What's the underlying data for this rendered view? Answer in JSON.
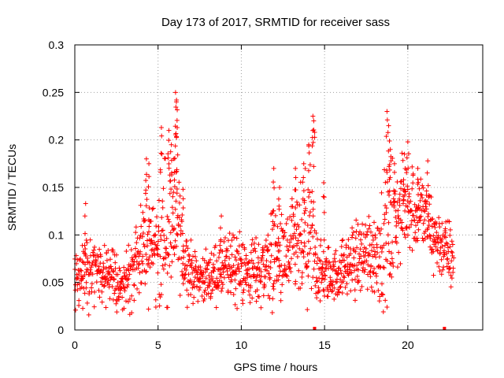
{
  "chart_data": {
    "type": "scatter",
    "title": "Day 173 of 2017, SRMTID for receiver sass",
    "xlabel": "GPS time / hours",
    "ylabel": "SRMTID / TECUs",
    "xlim": [
      0,
      24.5
    ],
    "ylim": [
      0,
      0.3
    ],
    "x_ticks": [
      "0",
      "5",
      "10",
      "15",
      "20"
    ],
    "x_tick_values": [
      0,
      5,
      10,
      15,
      20
    ],
    "y_ticks": [
      "0",
      "0.05",
      "0.1",
      "0.15",
      "0.2",
      "0.25",
      "0.3"
    ],
    "y_tick_values": [
      0,
      0.05,
      0.1,
      0.15,
      0.2,
      0.25,
      0.3
    ],
    "grid": true,
    "marker": "plus",
    "color": "#ff0000",
    "series": [
      {
        "name": "SRMTID",
        "note": "dense time series ~every 40 s; envelope sampled below",
        "x": [
          0.0,
          0.25,
          0.5,
          0.75,
          1.0,
          1.25,
          1.5,
          1.75,
          2.0,
          2.25,
          2.5,
          2.75,
          3.0,
          3.25,
          3.5,
          3.75,
          4.0,
          4.25,
          4.5,
          4.75,
          5.0,
          5.25,
          5.5,
          5.75,
          6.0,
          6.25,
          6.5,
          6.75,
          7.0,
          7.25,
          7.5,
          7.75,
          8.0,
          8.25,
          8.5,
          8.75,
          9.0,
          9.25,
          9.5,
          9.75,
          10.0,
          10.25,
          10.5,
          10.75,
          11.0,
          11.25,
          11.5,
          11.75,
          12.0,
          12.25,
          12.5,
          12.75,
          13.0,
          13.25,
          13.5,
          13.75,
          14.0,
          14.25,
          14.5,
          14.75,
          15.0,
          15.25,
          15.5,
          15.75,
          16.0,
          16.25,
          16.5,
          16.75,
          17.0,
          17.25,
          17.5,
          17.75,
          18.0,
          18.25,
          18.5,
          18.75,
          19.0,
          19.25,
          19.5,
          19.75,
          20.0,
          20.25,
          20.5,
          20.75,
          21.0,
          21.25,
          21.5,
          21.75,
          22.0,
          22.25,
          22.5,
          22.75
        ],
        "mean": [
          0.055,
          0.05,
          0.06,
          0.065,
          0.07,
          0.065,
          0.06,
          0.055,
          0.06,
          0.055,
          0.05,
          0.045,
          0.05,
          0.06,
          0.065,
          0.07,
          0.08,
          0.09,
          0.1,
          0.09,
          0.085,
          0.09,
          0.1,
          0.11,
          0.11,
          0.1,
          0.08,
          0.07,
          0.06,
          0.058,
          0.055,
          0.055,
          0.055,
          0.058,
          0.06,
          0.06,
          0.065,
          0.065,
          0.07,
          0.065,
          0.065,
          0.06,
          0.06,
          0.065,
          0.06,
          0.065,
          0.07,
          0.075,
          0.08,
          0.075,
          0.07,
          0.075,
          0.08,
          0.085,
          0.085,
          0.09,
          0.095,
          0.09,
          0.07,
          0.06,
          0.055,
          0.06,
          0.055,
          0.06,
          0.065,
          0.065,
          0.07,
          0.075,
          0.075,
          0.08,
          0.08,
          0.085,
          0.08,
          0.085,
          0.09,
          0.1,
          0.11,
          0.115,
          0.12,
          0.13,
          0.135,
          0.13,
          0.125,
          0.13,
          0.12,
          0.11,
          0.1,
          0.095,
          0.09,
          0.085,
          0.08,
          0.07
        ],
        "spread": [
          0.025,
          0.025,
          0.03,
          0.035,
          0.03,
          0.03,
          0.03,
          0.025,
          0.025,
          0.03,
          0.025,
          0.02,
          0.025,
          0.03,
          0.03,
          0.035,
          0.04,
          0.045,
          0.05,
          0.045,
          0.05,
          0.06,
          0.07,
          0.08,
          0.07,
          0.05,
          0.035,
          0.03,
          0.025,
          0.02,
          0.02,
          0.02,
          0.02,
          0.025,
          0.025,
          0.025,
          0.03,
          0.03,
          0.035,
          0.035,
          0.03,
          0.03,
          0.03,
          0.03,
          0.03,
          0.035,
          0.035,
          0.04,
          0.045,
          0.04,
          0.04,
          0.045,
          0.045,
          0.05,
          0.05,
          0.06,
          0.07,
          0.065,
          0.04,
          0.03,
          0.025,
          0.025,
          0.02,
          0.025,
          0.025,
          0.025,
          0.03,
          0.035,
          0.035,
          0.035,
          0.035,
          0.04,
          0.04,
          0.045,
          0.05,
          0.06,
          0.065,
          0.05,
          0.045,
          0.04,
          0.04,
          0.04,
          0.04,
          0.035,
          0.035,
          0.035,
          0.035,
          0.03,
          0.03,
          0.03,
          0.03,
          0.03
        ],
        "peaks": [
          {
            "x": 4.3,
            "y": 0.18
          },
          {
            "x": 4.45,
            "y": 0.175
          },
          {
            "x": 5.2,
            "y": 0.213
          },
          {
            "x": 5.65,
            "y": 0.21
          },
          {
            "x": 5.8,
            "y": 0.195
          },
          {
            "x": 6.05,
            "y": 0.25
          },
          {
            "x": 6.1,
            "y": 0.24
          },
          {
            "x": 6.15,
            "y": 0.213
          },
          {
            "x": 5.95,
            "y": 0.18
          },
          {
            "x": 6.5,
            "y": 0.148
          },
          {
            "x": 11.95,
            "y": 0.17
          },
          {
            "x": 12.3,
            "y": 0.15
          },
          {
            "x": 13.25,
            "y": 0.17
          },
          {
            "x": 13.75,
            "y": 0.175
          },
          {
            "x": 14.05,
            "y": 0.195
          },
          {
            "x": 14.3,
            "y": 0.225
          },
          {
            "x": 14.35,
            "y": 0.22
          },
          {
            "x": 14.95,
            "y": 0.155
          },
          {
            "x": 18.75,
            "y": 0.23
          },
          {
            "x": 18.85,
            "y": 0.215
          },
          {
            "x": 18.95,
            "y": 0.19
          },
          {
            "x": 19.2,
            "y": 0.175
          },
          {
            "x": 20.0,
            "y": 0.198
          },
          {
            "x": 19.8,
            "y": 0.185
          },
          {
            "x": 20.6,
            "y": 0.17
          },
          {
            "x": 21.2,
            "y": 0.178
          },
          {
            "x": 0.65,
            "y": 0.133
          },
          {
            "x": 8.8,
            "y": 0.12
          }
        ],
        "low_markers": [
          {
            "x": 14.4,
            "y": 0.0
          },
          {
            "x": 22.2,
            "y": 0.0
          }
        ]
      }
    ]
  }
}
